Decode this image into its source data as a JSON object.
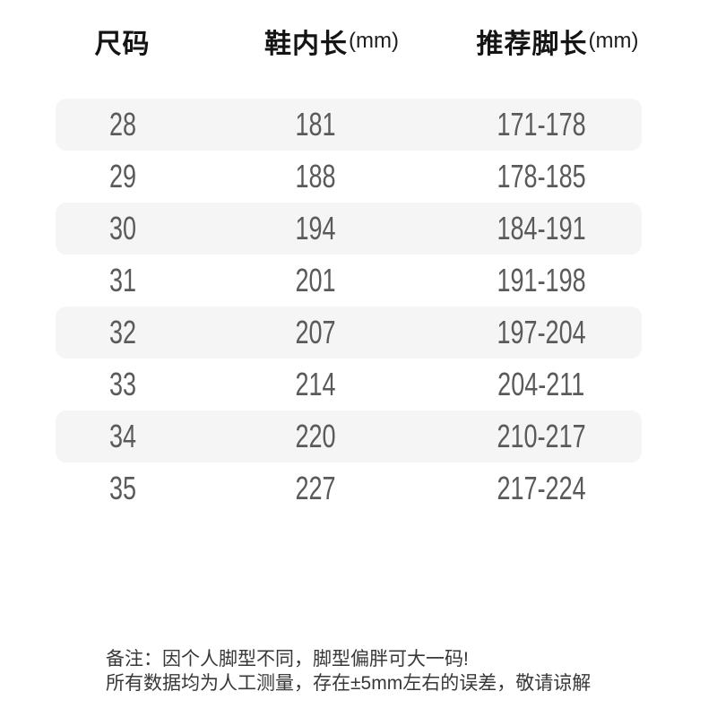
{
  "chart_data": {
    "type": "table",
    "title": "",
    "columns": [
      "尺码",
      "鞋内长(mm)",
      "推荐脚长(mm)"
    ],
    "rows": [
      [
        "28",
        "181",
        "171-178"
      ],
      [
        "29",
        "188",
        "178-185"
      ],
      [
        "30",
        "194",
        "184-191"
      ],
      [
        "31",
        "201",
        "191-198"
      ],
      [
        "32",
        "207",
        "197-204"
      ],
      [
        "33",
        "214",
        "204-211"
      ],
      [
        "34",
        "220",
        "210-217"
      ],
      [
        "35",
        "227",
        "217-224"
      ]
    ],
    "annotations": [
      "备注：因个人脚型不同，脚型偏胖可大一码!",
      "所有数据均为人工测量，存在±5mm左右的误差，敬请谅解"
    ],
    "layout": {
      "striped_rows": "odd rows shaded",
      "first_row_shaded": true
    }
  },
  "table": {
    "headers": [
      {
        "label": "尺码",
        "unit": ""
      },
      {
        "label": "鞋内长",
        "unit": "(mm)"
      },
      {
        "label": "推荐脚长",
        "unit": "(mm)"
      }
    ],
    "rows": [
      {
        "size": "28",
        "inner_length_mm": "181",
        "recommended_foot_length_mm": "171-178"
      },
      {
        "size": "29",
        "inner_length_mm": "188",
        "recommended_foot_length_mm": "178-185"
      },
      {
        "size": "30",
        "inner_length_mm": "194",
        "recommended_foot_length_mm": "184-191"
      },
      {
        "size": "31",
        "inner_length_mm": "201",
        "recommended_foot_length_mm": "191-198"
      },
      {
        "size": "32",
        "inner_length_mm": "207",
        "recommended_foot_length_mm": "197-204"
      },
      {
        "size": "33",
        "inner_length_mm": "214",
        "recommended_foot_length_mm": "204-211"
      },
      {
        "size": "34",
        "inner_length_mm": "220",
        "recommended_foot_length_mm": "210-217"
      },
      {
        "size": "35",
        "inner_length_mm": "227",
        "recommended_foot_length_mm": "217-224"
      }
    ]
  },
  "notes": {
    "line1": "备注：因个人脚型不同，脚型偏胖可大一码!",
    "line2": "所有数据均为人工测量，存在±5mm左右的误差，敬请谅解"
  },
  "colors": {
    "background": "#ffffff",
    "stripe": "#f5f5f6",
    "header_text": "#141414",
    "value_text": "#5a5a5a",
    "note_text": "#383838"
  }
}
